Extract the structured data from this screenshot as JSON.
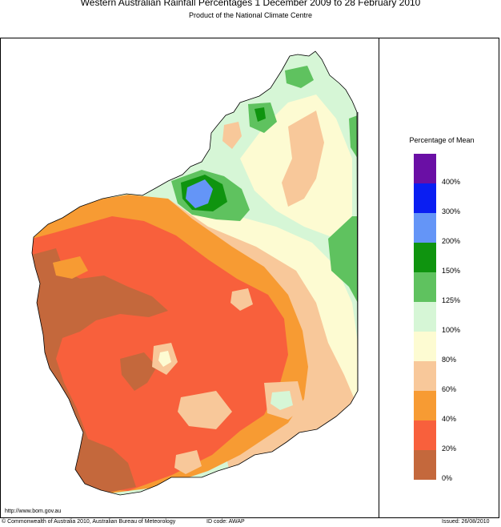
{
  "header": {
    "title": "Western Australian Rainfall Percentages 1 December 2009 to 28 February 2010",
    "subtitle": "Product of the National Climate Centre"
  },
  "legend": {
    "title": "Percentage of Mean",
    "labels": [
      "400%",
      "300%",
      "200%",
      "150%",
      "125%",
      "100%",
      "80%",
      "60%",
      "40%",
      "20%",
      "0%"
    ],
    "classes": [
      {
        "range": "above 400%",
        "color": "#6a0fa5"
      },
      {
        "range": "300-400%",
        "color": "#0a1ef2"
      },
      {
        "range": "200-300%",
        "color": "#6495f7"
      },
      {
        "range": "150-200%",
        "color": "#0f940f"
      },
      {
        "range": "125-150%",
        "color": "#5fc25f"
      },
      {
        "range": "100-125%",
        "color": "#d6f6d6"
      },
      {
        "range": "80-100%",
        "color": "#fdfbd2"
      },
      {
        "range": "60-80%",
        "color": "#f8c89a"
      },
      {
        "range": "40-60%",
        "color": "#f79b33"
      },
      {
        "range": "20-40%",
        "color": "#f8603c"
      },
      {
        "range": "0-20%",
        "color": "#c4683c"
      }
    ]
  },
  "footer": {
    "url": "http://www.bom.gov.au",
    "copyright": "© Commonwealth of Australia 2010, Australian Bureau of Meteorology",
    "id_code": "ID code: AWAP",
    "issued": "Issued: 26/08/2010"
  }
}
